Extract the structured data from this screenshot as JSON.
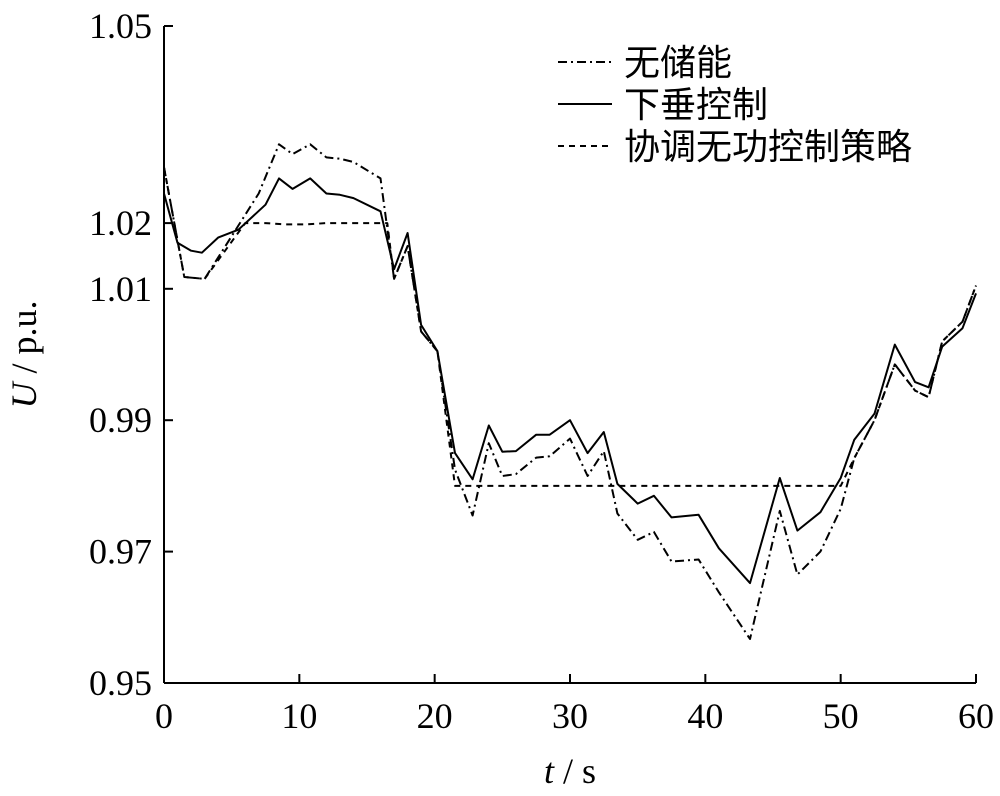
{
  "chart_data": {
    "type": "line",
    "xlabel": {
      "var": "t",
      "unit": "s"
    },
    "ylabel": {
      "var": "U",
      "unit": "p.u."
    },
    "xlim": [
      0,
      60
    ],
    "ylim": [
      0.95,
      1.05
    ],
    "xticks": [
      0,
      10,
      20,
      30,
      40,
      50,
      60
    ],
    "yticks": [
      0.95,
      0.97,
      0.99,
      1.01,
      1.02,
      1.05
    ],
    "ytick_labels": [
      "0.95",
      "0.97",
      "0.99",
      "1.01",
      "1.02",
      "1.05"
    ],
    "grid": false,
    "legend_position": "top-right",
    "series": [
      {
        "name": "无储能",
        "style": "dashdot",
        "points": [
          [
            0,
            1.0285
          ],
          [
            1.5,
            1.0118
          ],
          [
            3,
            1.0115
          ],
          [
            7,
            1.0245
          ],
          [
            8.5,
            1.032
          ],
          [
            9.5,
            1.0305
          ],
          [
            10.8,
            1.032
          ],
          [
            12,
            1.03
          ],
          [
            13,
            1.0298
          ],
          [
            14,
            1.0293
          ],
          [
            16,
            1.0268
          ],
          [
            17,
            1.0115
          ],
          [
            18,
            1.0165
          ],
          [
            19,
            1.0035
          ],
          [
            20.2,
            1.0005
          ],
          [
            21.5,
            0.9825
          ],
          [
            22.8,
            0.9755
          ],
          [
            24,
            0.9865
          ],
          [
            25,
            0.9815
          ],
          [
            26,
            0.9818
          ],
          [
            27.5,
            0.9843
          ],
          [
            28.5,
            0.9845
          ],
          [
            30,
            0.9872
          ],
          [
            31.3,
            0.9815
          ],
          [
            32.5,
            0.9853
          ],
          [
            33.5,
            0.9758
          ],
          [
            35,
            0.9718
          ],
          [
            36.2,
            0.973
          ],
          [
            37.5,
            0.9685
          ],
          [
            39.5,
            0.9688
          ],
          [
            41,
            0.9638
          ],
          [
            43.3,
            0.9567
          ],
          [
            45.5,
            0.9762
          ],
          [
            46.8,
            0.9665
          ],
          [
            48.5,
            0.97
          ],
          [
            50,
            0.9765
          ],
          [
            51,
            0.9842
          ],
          [
            52.5,
            0.99
          ],
          [
            54,
            0.9985
          ],
          [
            55.5,
            0.9945
          ],
          [
            56.5,
            0.9935
          ],
          [
            57.5,
            1.002
          ],
          [
            59,
            1.005
          ],
          [
            60,
            1.0105
          ]
        ]
      },
      {
        "name": "下垂控制",
        "style": "solid",
        "points": [
          [
            0,
            1.0245
          ],
          [
            1,
            1.017
          ],
          [
            2,
            1.0158
          ],
          [
            2.8,
            1.0155
          ],
          [
            4,
            1.0178
          ],
          [
            5.5,
            1.019
          ],
          [
            7.5,
            1.0228
          ],
          [
            8.5,
            1.0268
          ],
          [
            9.5,
            1.0252
          ],
          [
            10.8,
            1.0268
          ],
          [
            12,
            1.0245
          ],
          [
            13,
            1.0243
          ],
          [
            14,
            1.0238
          ],
          [
            16,
            1.0218
          ],
          [
            17,
            1.013
          ],
          [
            18,
            1.0185
          ],
          [
            19,
            1.0045
          ],
          [
            20.2,
            1.0005
          ],
          [
            21.5,
            0.985
          ],
          [
            22.8,
            0.981
          ],
          [
            24,
            0.9892
          ],
          [
            25,
            0.9852
          ],
          [
            26,
            0.9853
          ],
          [
            27.5,
            0.9878
          ],
          [
            28.5,
            0.9878
          ],
          [
            30,
            0.99
          ],
          [
            31.3,
            0.985
          ],
          [
            32.5,
            0.9882
          ],
          [
            33.5,
            0.9803
          ],
          [
            35,
            0.9773
          ],
          [
            36.2,
            0.9785
          ],
          [
            37.5,
            0.9752
          ],
          [
            39.5,
            0.9756
          ],
          [
            41,
            0.9705
          ],
          [
            43.3,
            0.9652
          ],
          [
            45.5,
            0.9812
          ],
          [
            46.8,
            0.9732
          ],
          [
            48.5,
            0.976
          ],
          [
            50,
            0.9812
          ],
          [
            51,
            0.987
          ],
          [
            52.5,
            0.991
          ],
          [
            54,
            1.0015
          ],
          [
            55.5,
            0.9958
          ],
          [
            56.5,
            0.995
          ],
          [
            57.5,
            1.0012
          ],
          [
            59,
            1.004
          ],
          [
            60,
            1.0093
          ]
        ]
      },
      {
        "name": "协调无功控制策略",
        "style": "dashed",
        "points": [
          [
            0,
            1.0285
          ],
          [
            1.5,
            1.0118
          ],
          [
            3,
            1.0115
          ],
          [
            6,
            1.02
          ],
          [
            7.5,
            1.02
          ],
          [
            9,
            1.0198
          ],
          [
            10.5,
            1.0198
          ],
          [
            12,
            1.02
          ],
          [
            14,
            1.02
          ],
          [
            16.5,
            1.02
          ],
          [
            17,
            1.0115
          ],
          [
            18,
            1.0165
          ],
          [
            19,
            1.0035
          ],
          [
            20.2,
            1.0005
          ],
          [
            21.5,
            0.98
          ],
          [
            33,
            0.98
          ],
          [
            40,
            0.98
          ],
          [
            45,
            0.98
          ],
          [
            50,
            0.98
          ],
          [
            51,
            0.9842
          ],
          [
            52.5,
            0.99
          ],
          [
            54,
            0.9985
          ],
          [
            55.5,
            0.9945
          ],
          [
            56.5,
            0.9935
          ],
          [
            57.5,
            1.002
          ],
          [
            59,
            1.005
          ],
          [
            60,
            1.0105
          ]
        ]
      }
    ]
  }
}
